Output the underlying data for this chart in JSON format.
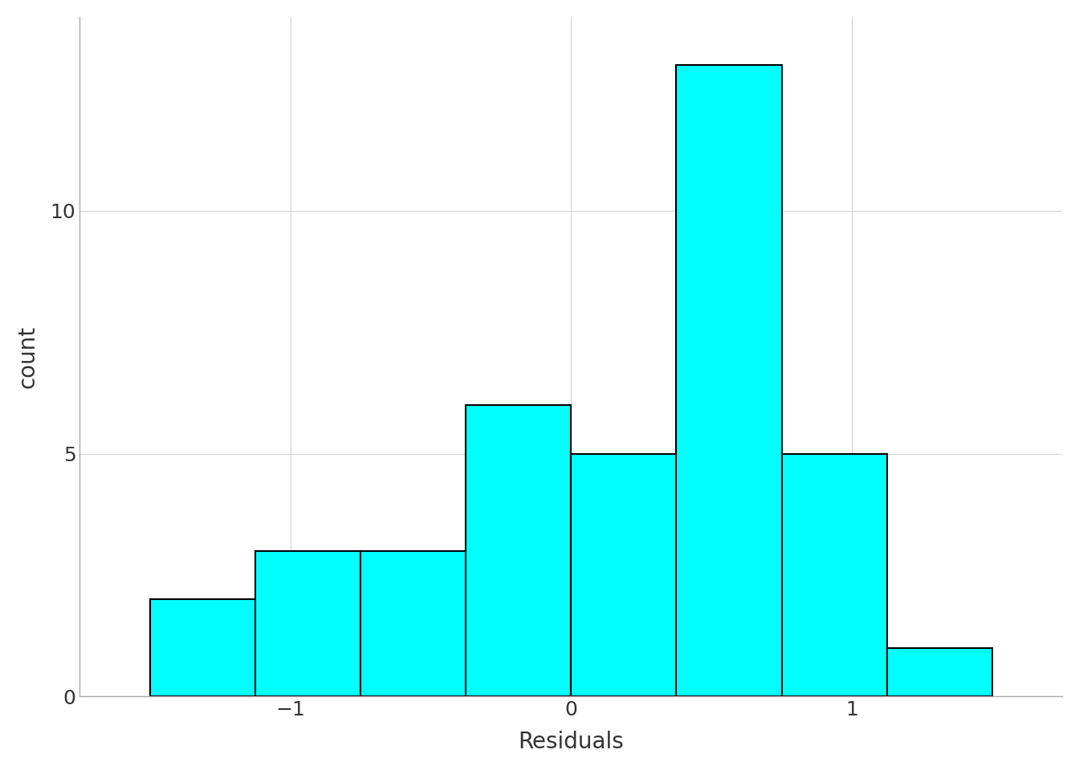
{
  "title": "",
  "xlabel": "Residuals",
  "ylabel": "count",
  "bar_color": "#00FFFF",
  "bar_edge_color": "#000000",
  "bar_edge_width": 1.5,
  "bin_edges": [
    -1.5,
    -1.125,
    -0.75,
    -0.375,
    0.0,
    0.375,
    0.75,
    1.125,
    1.5
  ],
  "counts": [
    2,
    3,
    3,
    6,
    5,
    13,
    5,
    1
  ],
  "xlim": [
    -1.75,
    1.75
  ],
  "ylim": [
    0,
    14
  ],
  "xticks": [
    -1,
    0,
    1
  ],
  "yticks": [
    0,
    5,
    10
  ],
  "background_color": "#FFFFFF",
  "panel_background": "#FFFFFF",
  "grid_color": "#D3D3D3",
  "grid_linewidth": 0.8,
  "xlabel_fontsize": 20,
  "ylabel_fontsize": 20,
  "tick_fontsize": 18,
  "tick_color": "#333333",
  "label_color": "#333333",
  "spine_color": "#AAAAAA",
  "spine_linewidth": 1.0
}
